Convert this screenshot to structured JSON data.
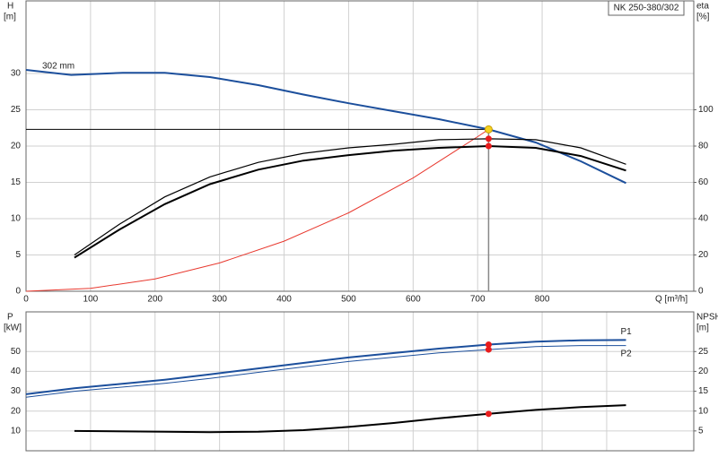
{
  "chart_data": [
    {
      "type": "line",
      "title": "NK 250-380/302",
      "y_label": "H",
      "y_unit": "[m]",
      "y2_label": "eta",
      "y2_unit": "[%]",
      "x_label": "Q [m³/h]",
      "annotation": "302 mm",
      "xlim": [
        0,
        1035
      ],
      "xticks": [
        0,
        100,
        200,
        300,
        400,
        500,
        600,
        700,
        800
      ],
      "ylim": [
        0,
        40
      ],
      "yticks": [
        0,
        5,
        10,
        15,
        20,
        25,
        30
      ],
      "y2lim": [
        0,
        160
      ],
      "y2ticks": [
        0,
        20,
        40,
        60,
        80,
        100
      ],
      "grid": true,
      "xtick_labels": true,
      "duty_point": {
        "x": 717,
        "y": 22.3
      },
      "series": [
        {
          "color": "#e8392f",
          "width": 1,
          "x": [
            0,
            100,
            200,
            300,
            400,
            500,
            600,
            700,
            717
          ],
          "values": [
            0,
            0.4,
            1.7,
            3.9,
            6.9,
            10.8,
            15.6,
            21.3,
            22.3
          ]
        },
        {
          "color": "#1c4f9c",
          "width": 2,
          "x": [
            0,
            70,
            150,
            215,
            285,
            360,
            430,
            500,
            570,
            640,
            717,
            790,
            860,
            930
          ],
          "values": [
            30.5,
            29.8,
            30.1,
            30.1,
            29.5,
            28.4,
            27.1,
            25.9,
            24.8,
            23.7,
            22.3,
            20.5,
            17.9,
            14.9
          ]
        },
        {
          "color": "#000000",
          "width": 1.2,
          "axis": "y2",
          "x": [
            75,
            145,
            215,
            285,
            360,
            430,
            500,
            570,
            640,
            717,
            790,
            860,
            930
          ],
          "values": [
            20,
            37,
            52,
            63,
            71,
            76,
            79,
            81,
            83.5,
            84,
            83.5,
            79,
            70
          ]
        },
        {
          "color": "#000000",
          "width": 2,
          "axis": "y2",
          "x": [
            75,
            145,
            215,
            285,
            360,
            430,
            500,
            570,
            640,
            717,
            790,
            860,
            930
          ],
          "values": [
            18.5,
            34,
            48,
            59,
            67,
            72,
            75,
            77.5,
            79,
            80,
            79,
            74.5,
            66.5
          ]
        }
      ]
    },
    {
      "type": "line",
      "y_label": "P",
      "y_unit": "[kW]",
      "y2_label": "NPSH",
      "y2_unit": "[m]",
      "xlim": [
        0,
        1035
      ],
      "xticks": [
        0,
        100,
        200,
        300,
        400,
        500,
        600,
        700,
        800,
        900
      ],
      "ylim": [
        0,
        70
      ],
      "yticks": [
        10,
        20,
        30,
        40,
        50
      ],
      "y2lim": [
        0,
        35
      ],
      "y2ticks": [
        5,
        10,
        15,
        20,
        25
      ],
      "grid": true,
      "xtick_labels": false,
      "duty_x": 717,
      "series": [
        {
          "name": "P1",
          "color": "#1c4f9c",
          "width": 2,
          "x": [
            0,
            75,
            215,
            285,
            360,
            500,
            640,
            717,
            790,
            860,
            930
          ],
          "values": [
            28.5,
            31.5,
            35.8,
            38.5,
            41.5,
            47,
            51.5,
            53.5,
            55,
            55.7,
            55.8
          ]
        },
        {
          "name": "P2",
          "color": "#1c4f9c",
          "width": 1,
          "x": [
            0,
            75,
            215,
            285,
            360,
            500,
            640,
            717,
            790,
            860,
            930
          ],
          "values": [
            27,
            30,
            34,
            36.5,
            39.5,
            45,
            49.3,
            51,
            52.5,
            53,
            53
          ]
        },
        {
          "color": "#000000",
          "width": 2,
          "axis": "y2",
          "x": [
            75,
            215,
            285,
            360,
            430,
            500,
            570,
            640,
            717,
            790,
            860,
            930
          ],
          "values": [
            5,
            4.8,
            4.7,
            4.8,
            5.2,
            6,
            7,
            8.2,
            9.3,
            10.3,
            11,
            11.5
          ]
        }
      ]
    }
  ]
}
